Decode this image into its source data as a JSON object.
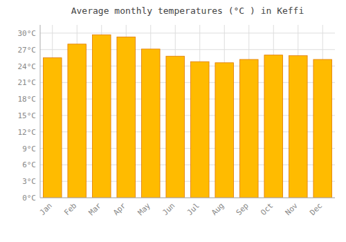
{
  "chart_data": {
    "type": "bar",
    "title": "Average monthly temperatures (°C ) in Keffi",
    "categories": [
      "Jan",
      "Feb",
      "Mar",
      "Apr",
      "May",
      "Jun",
      "Jul",
      "Aug",
      "Sep",
      "Oct",
      "Nov",
      "Dec"
    ],
    "values": [
      25.5,
      28.0,
      29.7,
      29.3,
      27.1,
      25.8,
      24.8,
      24.6,
      25.2,
      26.0,
      25.9,
      25.2
    ],
    "color": "#FFBB00",
    "ylim": [
      0,
      31.5
    ],
    "yticks": [
      {
        "value": 0,
        "label": "0°C"
      },
      {
        "value": 3,
        "label": "3°C"
      },
      {
        "value": 6,
        "label": "6°C"
      },
      {
        "value": 9,
        "label": "9°C"
      },
      {
        "value": 12,
        "label": "12°C"
      },
      {
        "value": 15,
        "label": "15°C"
      },
      {
        "value": 18,
        "label": "18°C"
      },
      {
        "value": 21,
        "label": "21°C"
      },
      {
        "value": 24,
        "label": "24°C"
      },
      {
        "value": 27,
        "label": "27°C"
      },
      {
        "value": 30,
        "label": "30°C"
      }
    ],
    "grid": true
  }
}
